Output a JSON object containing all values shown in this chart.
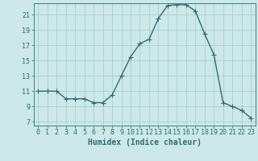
{
  "x": [
    0,
    1,
    2,
    3,
    4,
    5,
    6,
    7,
    8,
    9,
    10,
    11,
    12,
    13,
    14,
    15,
    16,
    17,
    18,
    19,
    20,
    21,
    22,
    23
  ],
  "y": [
    11,
    11,
    11,
    10,
    10,
    10,
    9.5,
    9.5,
    10.5,
    13,
    15.5,
    17.2,
    17.8,
    20.5,
    22.2,
    22.3,
    22.3,
    21.5,
    18.5,
    15.8,
    9.5,
    9,
    8.5,
    7.5
  ],
  "line_color": "#2e6e6e",
  "marker": "+",
  "marker_size": 4,
  "bg_color": "#cce8e8",
  "grid_color": "#aacfcf",
  "xlabel": "Humidex (Indice chaleur)",
  "xlim": [
    -0.5,
    23.5
  ],
  "ylim": [
    6.5,
    22.5
  ],
  "yticks": [
    7,
    9,
    11,
    13,
    15,
    17,
    19,
    21
  ],
  "xticks": [
    0,
    1,
    2,
    3,
    4,
    5,
    6,
    7,
    8,
    9,
    10,
    11,
    12,
    13,
    14,
    15,
    16,
    17,
    18,
    19,
    20,
    21,
    22,
    23
  ],
  "tick_label_fontsize": 6,
  "xlabel_fontsize": 7,
  "line_width": 1.0
}
